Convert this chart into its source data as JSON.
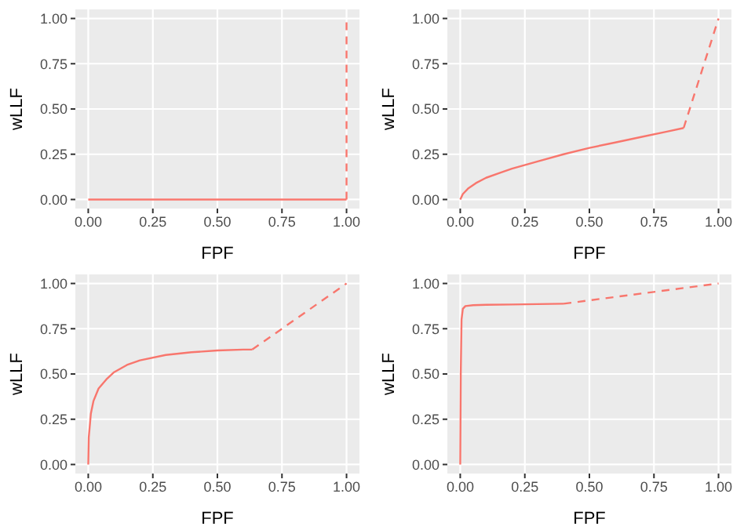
{
  "chart_data": [
    {
      "type": "line",
      "xlabel": "FPF",
      "ylabel": "wLLF",
      "xlim": [
        -0.05,
        1.05
      ],
      "ylim": [
        -0.05,
        1.05
      ],
      "xticks": [
        {
          "value": 0,
          "label": "0.00"
        },
        {
          "value": 0.25,
          "label": "0.25"
        },
        {
          "value": 0.5,
          "label": "0.50"
        },
        {
          "value": 0.75,
          "label": "0.75"
        },
        {
          "value": 1,
          "label": "1.00"
        }
      ],
      "yticks": [
        {
          "value": 0,
          "label": "0.00"
        },
        {
          "value": 0.25,
          "label": "0.25"
        },
        {
          "value": 0.5,
          "label": "0.50"
        },
        {
          "value": 0.75,
          "label": "0.75"
        },
        {
          "value": 1,
          "label": "1.00"
        }
      ],
      "grid": true,
      "marker": "none",
      "series": [
        {
          "color": "#f8766d",
          "line_style": "solid",
          "x": [
            0,
            1
          ],
          "values": [
            0,
            0
          ]
        },
        {
          "color": "#f8766d",
          "line_style": "dashed",
          "x": [
            1,
            1
          ],
          "values": [
            0,
            1
          ]
        }
      ]
    },
    {
      "type": "line",
      "xlabel": "FPF",
      "ylabel": "wLLF",
      "xlim": [
        -0.05,
        1.05
      ],
      "ylim": [
        -0.05,
        1.05
      ],
      "xticks": [
        {
          "value": 0,
          "label": "0.00"
        },
        {
          "value": 0.25,
          "label": "0.25"
        },
        {
          "value": 0.5,
          "label": "0.50"
        },
        {
          "value": 0.75,
          "label": "0.75"
        },
        {
          "value": 1,
          "label": "1.00"
        }
      ],
      "yticks": [
        {
          "value": 0,
          "label": "0.00"
        },
        {
          "value": 0.25,
          "label": "0.25"
        },
        {
          "value": 0.5,
          "label": "0.50"
        },
        {
          "value": 0.75,
          "label": "0.75"
        },
        {
          "value": 1,
          "label": "1.00"
        }
      ],
      "grid": true,
      "marker": "none",
      "series": [
        {
          "color": "#f8766d",
          "line_style": "solid",
          "x": [
            0,
            0.01,
            0.03,
            0.06,
            0.1,
            0.15,
            0.2,
            0.3,
            0.4,
            0.5,
            0.6,
            0.7,
            0.8,
            0.865
          ],
          "values": [
            0,
            0.03,
            0.06,
            0.09,
            0.12,
            0.145,
            0.17,
            0.21,
            0.25,
            0.285,
            0.315,
            0.345,
            0.375,
            0.395
          ]
        },
        {
          "color": "#f8766d",
          "line_style": "dashed",
          "x": [
            0.865,
            1
          ],
          "values": [
            0.395,
            1
          ]
        }
      ]
    },
    {
      "type": "line",
      "xlabel": "FPF",
      "ylabel": "wLLF",
      "xlim": [
        -0.05,
        1.05
      ],
      "ylim": [
        -0.05,
        1.05
      ],
      "xticks": [
        {
          "value": 0,
          "label": "0.00"
        },
        {
          "value": 0.25,
          "label": "0.25"
        },
        {
          "value": 0.5,
          "label": "0.50"
        },
        {
          "value": 0.75,
          "label": "0.75"
        },
        {
          "value": 1,
          "label": "1.00"
        }
      ],
      "yticks": [
        {
          "value": 0,
          "label": "0.00"
        },
        {
          "value": 0.25,
          "label": "0.25"
        },
        {
          "value": 0.5,
          "label": "0.50"
        },
        {
          "value": 0.75,
          "label": "0.75"
        },
        {
          "value": 1,
          "label": "1.00"
        }
      ],
      "grid": true,
      "marker": "none",
      "series": [
        {
          "color": "#f8766d",
          "line_style": "solid",
          "x": [
            0,
            0.002,
            0.01,
            0.02,
            0.04,
            0.07,
            0.1,
            0.15,
            0.2,
            0.3,
            0.4,
            0.5,
            0.6,
            0.635
          ],
          "values": [
            0,
            0.15,
            0.28,
            0.35,
            0.42,
            0.47,
            0.51,
            0.55,
            0.575,
            0.605,
            0.62,
            0.63,
            0.635,
            0.635
          ]
        },
        {
          "color": "#f8766d",
          "line_style": "dashed",
          "x": [
            0.635,
            1
          ],
          "values": [
            0.635,
            1
          ]
        }
      ]
    },
    {
      "type": "line",
      "xlabel": "FPF",
      "ylabel": "wLLF",
      "xlim": [
        -0.05,
        1.05
      ],
      "ylim": [
        -0.05,
        1.05
      ],
      "xticks": [
        {
          "value": 0,
          "label": "0.00"
        },
        {
          "value": 0.25,
          "label": "0.25"
        },
        {
          "value": 0.5,
          "label": "0.50"
        },
        {
          "value": 0.75,
          "label": "0.75"
        },
        {
          "value": 1,
          "label": "1.00"
        }
      ],
      "yticks": [
        {
          "value": 0,
          "label": "0.00"
        },
        {
          "value": 0.25,
          "label": "0.25"
        },
        {
          "value": 0.5,
          "label": "0.50"
        },
        {
          "value": 0.75,
          "label": "0.75"
        },
        {
          "value": 1,
          "label": "1.00"
        }
      ],
      "grid": true,
      "marker": "none",
      "series": [
        {
          "color": "#f8766d",
          "line_style": "solid",
          "x": [
            0,
            0.002,
            0.005,
            0.01,
            0.02,
            0.05,
            0.1,
            0.2,
            0.3,
            0.4
          ],
          "values": [
            0,
            0.5,
            0.8,
            0.86,
            0.875,
            0.88,
            0.882,
            0.884,
            0.886,
            0.888
          ]
        },
        {
          "color": "#f8766d",
          "line_style": "dashed",
          "x": [
            0.4,
            1
          ],
          "values": [
            0.888,
            1
          ]
        }
      ]
    }
  ]
}
